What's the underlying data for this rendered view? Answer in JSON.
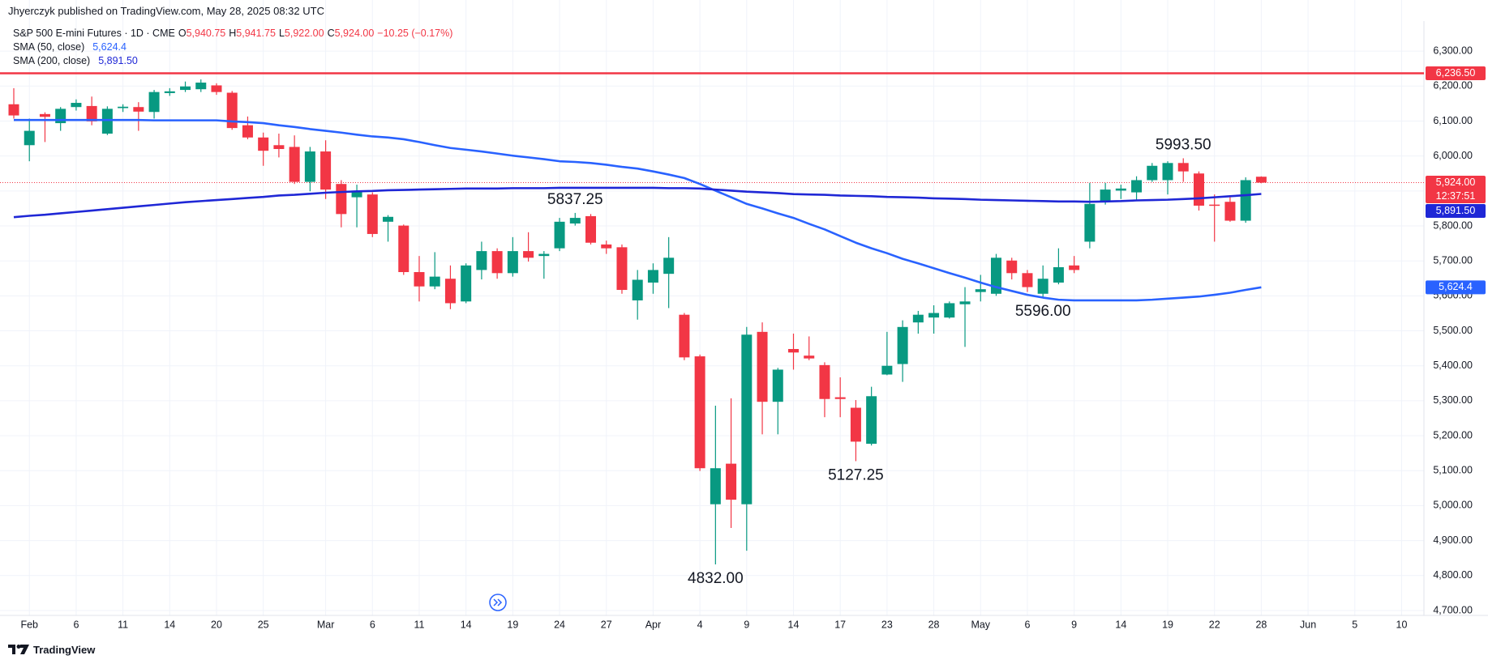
{
  "header": {
    "publisher": "Jhyerczyk published on TradingView.com, May 28, 2025 08:32 UTC"
  },
  "chart_data": {
    "type": "candlestick",
    "title": "S&P 500 E-mini Futures · 1D · CME",
    "ohlc_legend": [
      {
        "key": "O",
        "value": "5,940.75"
      },
      {
        "key": "H",
        "value": "5,941.75"
      },
      {
        "key": "L",
        "value": "5,922.00"
      },
      {
        "key": "C",
        "value": "5,924.00"
      }
    ],
    "change": "−10.25 (−0.17%)",
    "categories": [
      null,
      "Feb",
      null,
      null,
      "6",
      null,
      null,
      "11",
      null,
      null,
      "14",
      null,
      null,
      "20",
      null,
      null,
      "25",
      null,
      null,
      null,
      "Mar",
      null,
      null,
      "6",
      null,
      null,
      "11",
      null,
      null,
      "14",
      null,
      null,
      "19",
      null,
      null,
      "24",
      null,
      null,
      "27",
      null,
      null,
      "Apr",
      null,
      null,
      "4",
      null,
      null,
      "9",
      null,
      null,
      "14",
      null,
      null,
      "17",
      null,
      null,
      "23",
      null,
      null,
      "28",
      null,
      null,
      "May",
      null,
      null,
      "6",
      null,
      null,
      "9",
      null,
      null,
      "14",
      null,
      null,
      "19",
      null,
      null,
      "22",
      null,
      null,
      "28",
      null,
      null,
      "Jun",
      null,
      null,
      "5",
      null,
      null,
      "10"
    ],
    "open": [
      6148,
      6031,
      6120,
      6094,
      6140,
      6143,
      6064,
      6137,
      6140,
      6126,
      6180,
      6189,
      6191,
      6202,
      6181,
      6088,
      6053,
      6031,
      6026,
      5926,
      6013,
      5920,
      5882,
      5890,
      5812,
      5801,
      5668,
      5627,
      5649,
      5584,
      5674,
      5728,
      5665,
      5728,
      5714,
      5736,
      5807,
      5828,
      5747,
      5739,
      5587,
      5638,
      5663,
      5546,
      5427,
      5004,
      5120,
      5004,
      5497,
      5297,
      5448,
      5429,
      5402,
      5310,
      5280,
      5177,
      5375,
      5405,
      5524,
      5538,
      5538,
      5576,
      5611,
      5606,
      5701,
      5665,
      5606,
      5638,
      5687,
      5755,
      5869,
      5901,
      5896,
      5931,
      5931,
      5980,
      5950,
      5861,
      5869,
      5815,
      5940.75,
      null,
      null,
      null,
      null,
      null,
      null,
      null,
      null,
      null
    ],
    "high": [
      6194,
      6107,
      6125,
      6140,
      6162,
      6170,
      6142,
      6148,
      6154,
      6189,
      6194,
      6213,
      6219,
      6208,
      6186,
      6113,
      6067,
      6064,
      6059,
      6026,
      6045,
      5931,
      5918,
      5896,
      5831,
      5804,
      5714,
      5725,
      5687,
      5693,
      5755,
      5736,
      5768,
      5782,
      5728,
      5823,
      5837.25,
      5834,
      5758,
      5747,
      5674,
      5693,
      5768,
      5551,
      5432,
      5286,
      5307,
      5511,
      5524,
      5394,
      5492,
      5484,
      5410,
      5367,
      5302,
      5340,
      5497,
      5530,
      5557,
      5573,
      5584,
      5625,
      5660,
      5720,
      5709,
      5674,
      5687,
      5736,
      5714,
      5923,
      5923,
      5918,
      5942,
      5980,
      5985,
      5993.5,
      5956,
      5890,
      5882,
      5939,
      5941.75,
      null,
      null,
      null,
      null,
      null,
      null,
      null,
      null,
      null
    ],
    "low": [
      6107,
      5985,
      6040,
      6072,
      6130,
      6088,
      6060,
      6126,
      6072,
      6107,
      6172,
      6183,
      6183,
      6175,
      6075,
      6048,
      5972,
      5996,
      5920,
      5899,
      5877,
      5796,
      5796,
      5768,
      5755,
      5660,
      5584,
      5619,
      5562,
      5579,
      5647,
      5649,
      5655,
      5698,
      5649,
      5728,
      5801,
      5747,
      5720,
      5606,
      5532,
      5606,
      5565,
      5416,
      5099,
      4832,
      4936,
      4871,
      5204,
      5204,
      5389,
      5416,
      5253,
      5253,
      5127.25,
      5172,
      5373,
      5354,
      5492,
      5492,
      5535,
      5454,
      5584,
      5600,
      5647,
      5611,
      5596,
      5633,
      5665,
      5736,
      5861,
      5877,
      5872,
      5926,
      5890,
      5926,
      5844,
      5755,
      5812,
      5809,
      5922,
      null,
      null,
      null,
      null,
      null,
      null,
      null,
      null,
      null
    ],
    "close": [
      6116,
      6072,
      6112,
      6135,
      6152,
      6099,
      6135,
      6141,
      6127,
      6183,
      6185,
      6199,
      6210,
      6183,
      6080,
      6053,
      6015,
      6020,
      5926,
      6013,
      5904,
      5834,
      5901,
      5777,
      5826,
      5668,
      5627,
      5655,
      5579,
      5687,
      5728,
      5665,
      5728,
      5709,
      5720,
      5812,
      5823,
      5752,
      5736,
      5617,
      5646,
      5674,
      5709,
      5424,
      5107,
      5107,
      5017,
      5489,
      5297,
      5389,
      5438,
      5421,
      5305,
      5305,
      5183,
      5313,
      5400,
      5511,
      5546,
      5551,
      5579,
      5584,
      5619,
      5709,
      5665,
      5625,
      5649,
      5682,
      5674,
      5863,
      5904,
      5907,
      5931,
      5972,
      5980,
      5956,
      5858,
      5858,
      5815,
      5931,
      5924,
      null,
      null,
      null,
      null,
      null,
      null,
      null,
      null,
      null
    ],
    "colors": {
      "up": "#089981",
      "down": "#f23645"
    },
    "series": [
      {
        "name": "SMA (50, close)",
        "color": "#2962ff",
        "value_label": "5,624.4",
        "values": [
          6103,
          6103,
          6103,
          6103,
          6103,
          6103,
          6103,
          6103,
          6103,
          6102,
          6102,
          6102,
          6102,
          6102,
          6099,
          6097,
          6094,
          6088,
          6083,
          6077,
          6072,
          6067,
          6061,
          6056,
          6053,
          6048,
          6040,
          6031,
          6023,
          6018,
          6013,
          6007,
          6001,
          5996,
          5991,
          5985,
          5983,
          5980,
          5975,
          5969,
          5964,
          5956,
          5947,
          5937,
          5920,
          5901,
          5882,
          5863,
          5850,
          5836,
          5823,
          5806,
          5790,
          5771,
          5752,
          5736,
          5722,
          5706,
          5693,
          5679,
          5665,
          5652,
          5638,
          5625,
          5614,
          5603,
          5595,
          5589,
          5587,
          5587,
          5587,
          5587,
          5587,
          5589,
          5592,
          5595,
          5598,
          5603,
          5609,
          5617,
          5624.4,
          null,
          null,
          null,
          null,
          null,
          null,
          null,
          null,
          null
        ]
      },
      {
        "name": "SMA (200, close)",
        "color": "#1f27d6",
        "value_label": "5,891.50",
        "values": [
          5825,
          5829,
          5832,
          5836,
          5840,
          5844,
          5848,
          5852,
          5856,
          5860,
          5864,
          5868,
          5871,
          5874,
          5877,
          5880,
          5883,
          5887,
          5889,
          5892,
          5895,
          5897,
          5899,
          5900,
          5902,
          5903,
          5904,
          5905,
          5906,
          5907,
          5907,
          5907,
          5908,
          5908,
          5908,
          5909,
          5909,
          5909,
          5909,
          5909,
          5909,
          5909,
          5908,
          5908,
          5907,
          5904,
          5901,
          5898,
          5896,
          5894,
          5891,
          5890,
          5889,
          5887,
          5886,
          5885,
          5883,
          5882,
          5881,
          5879,
          5878,
          5877,
          5875,
          5874,
          5873,
          5872,
          5871,
          5870,
          5870,
          5869,
          5870,
          5871,
          5873,
          5874,
          5875,
          5877,
          5879,
          5882,
          5885,
          5888,
          5891.5,
          null,
          null,
          null,
          null,
          null,
          null,
          null,
          null,
          null
        ]
      }
    ],
    "hline": {
      "value": 6236.5,
      "label": "6,236.50",
      "color": "#f23645"
    },
    "last_price": {
      "value": 5924,
      "label": "5,924.00",
      "countdown": "12:37:51"
    },
    "annotations": [
      {
        "value": 5837.25,
        "label": "5837.25"
      },
      {
        "value": 4832,
        "label": "4832.00"
      },
      {
        "value": 5127.25,
        "label": "5127.25"
      },
      {
        "value": 5596,
        "label": "5596.00"
      },
      {
        "value": 5993.5,
        "label": "5993.50"
      }
    ],
    "ylim": [
      4686,
      6386
    ],
    "yticks": [
      {
        "value": 6300,
        "label": "6,300.00"
      },
      {
        "value": 6200,
        "label": "6,200.00"
      },
      {
        "value": 6100,
        "label": "6,100.00"
      },
      {
        "value": 6000,
        "label": "6,000.00"
      },
      {
        "value": 5900,
        "label": "5,900.00"
      },
      {
        "value": 5800,
        "label": "5,800.00"
      },
      {
        "value": 5700,
        "label": "5,700.00"
      },
      {
        "value": 5600,
        "label": "5,600.00"
      },
      {
        "value": 5500,
        "label": "5,500.00"
      },
      {
        "value": 5400,
        "label": "5,400.00"
      },
      {
        "value": 5300,
        "label": "5,300.00"
      },
      {
        "value": 5200,
        "label": "5,200.00"
      },
      {
        "value": 5100,
        "label": "5,100.00"
      },
      {
        "value": 5000,
        "label": "5,000.00"
      },
      {
        "value": 4900,
        "label": "4,900.00"
      },
      {
        "value": 4800,
        "label": "4,800.00"
      },
      {
        "value": 4700,
        "label": "4,700.00"
      }
    ],
    "grid": true
  },
  "footer": {
    "brand": "TradingView"
  }
}
